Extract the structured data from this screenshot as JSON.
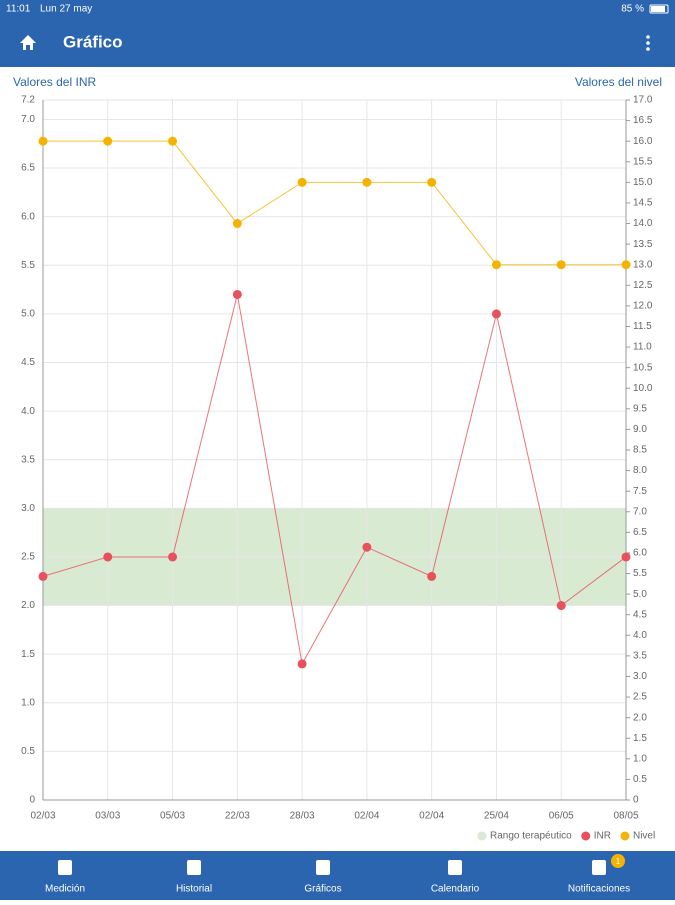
{
  "status_bar": {
    "time": "11:01",
    "date": "Lun 27 may",
    "battery": "85 %"
  },
  "app_bar": {
    "title": "Gráfico"
  },
  "chart_data": {
    "type": "line",
    "y_label": "Valores del INR",
    "y2_label": "Valores del nivel",
    "categories": [
      "02/03",
      "03/03",
      "05/03",
      "22/03",
      "28/03",
      "02/04",
      "02/04",
      "25/04",
      "06/05",
      "08/05"
    ],
    "series": [
      {
        "name": "INR",
        "color": "#e8505b",
        "values": [
          2.3,
          2.5,
          2.5,
          5.2,
          1.4,
          2.6,
          2.3,
          5.0,
          2.0,
          2.5
        ]
      },
      {
        "name": "Nivel",
        "color": "#f5b301",
        "axis": "y2",
        "values": [
          16,
          16,
          16,
          14,
          15,
          15,
          15,
          13,
          13,
          13
        ]
      }
    ],
    "band": {
      "name": "Rango terapéutico",
      "color": "#d9ead3",
      "range": [
        2,
        3
      ]
    },
    "ylim": [
      0,
      7.2
    ],
    "yticks": [
      0,
      0.5,
      {
        "value": 1,
        "label": "1.0"
      },
      1.5,
      {
        "value": 2,
        "label": "2.0"
      },
      2.5,
      {
        "value": 3,
        "label": "3.0"
      },
      3.5,
      {
        "value": 4,
        "label": "4.0"
      },
      4.5,
      {
        "value": 5,
        "label": "5.0"
      },
      5.5,
      {
        "value": 6,
        "label": "6.0"
      },
      6.5,
      {
        "value": 7,
        "label": "7.0"
      },
      7.2
    ],
    "y2lim": [
      0,
      17
    ],
    "y2ticks": [
      0,
      0.5,
      {
        "value": 1,
        "label": "1.0"
      },
      1.5,
      {
        "value": 2,
        "label": "2.0"
      },
      2.5,
      {
        "value": 3,
        "label": "3.0"
      },
      3.5,
      {
        "value": 4,
        "label": "4.0"
      },
      4.5,
      {
        "value": 5,
        "label": "5.0"
      },
      5.5,
      {
        "value": 6,
        "label": "6.0"
      },
      6.5,
      {
        "value": 7,
        "label": "7.0"
      },
      7.5,
      {
        "value": 8,
        "label": "8.0"
      },
      8.5,
      {
        "value": 9,
        "label": "9.0"
      },
      9.5,
      {
        "value": 10,
        "label": "10.0"
      },
      10.5,
      {
        "value": 11,
        "label": "11.0"
      },
      11.5,
      {
        "value": 12,
        "label": "12.0"
      },
      12.5,
      {
        "value": 13,
        "label": "13.0"
      },
      13.5,
      {
        "value": 14,
        "label": "14.0"
      },
      14.5,
      {
        "value": 15,
        "label": "15.0"
      },
      15.5,
      {
        "value": 16,
        "label": "16.0"
      },
      16.5,
      {
        "value": 17,
        "label": "17.0"
      }
    ],
    "grid": true
  },
  "nav": {
    "items": [
      "Medición",
      "Historial",
      "Gráficos",
      "Calendario",
      "Notificaciones"
    ],
    "badge": "1"
  }
}
